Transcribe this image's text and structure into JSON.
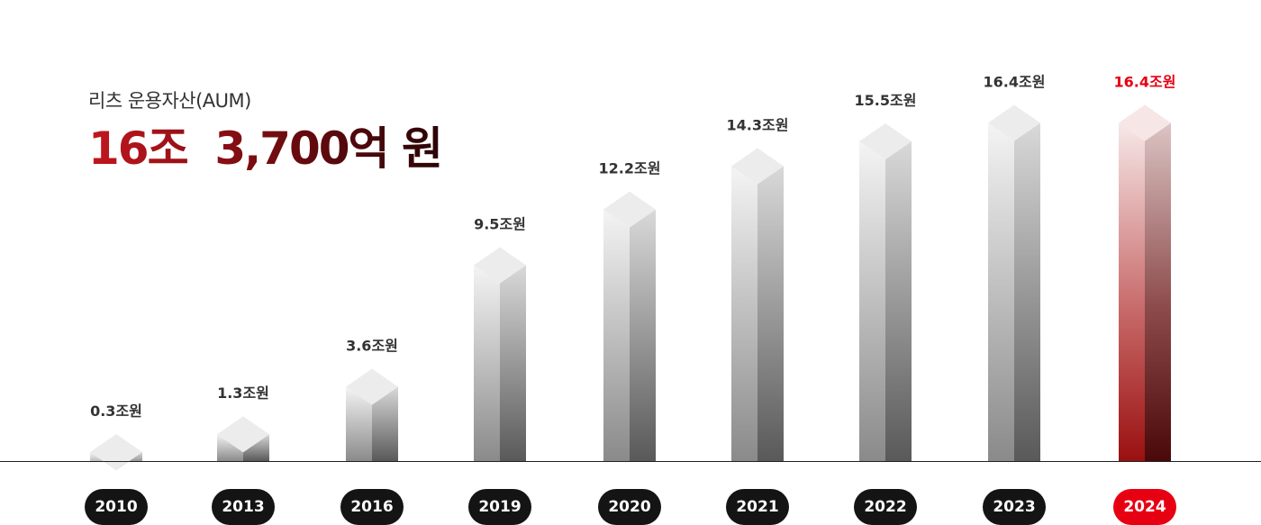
{
  "header": {
    "subtitle": "리츠 운용자산(AUM)",
    "total": "16조  3,700억 원"
  },
  "colors": {
    "highlight": "#e60012",
    "label": "#333333",
    "pill": "#141414"
  },
  "chart_data": {
    "type": "bar",
    "title": "리츠 운용자산(AUM)",
    "categories": [
      "2010",
      "2013",
      "2016",
      "2019",
      "2020",
      "2021",
      "2022",
      "2023",
      "2024"
    ],
    "values": [
      0.3,
      1.3,
      3.6,
      9.5,
      12.2,
      14.3,
      15.5,
      16.4,
      16.4
    ],
    "data_labels": [
      "0.3조원",
      "1.3조원",
      "3.6조원",
      "9.5조원",
      "12.2조원",
      "14.3조원",
      "15.5조원",
      "16.4조원",
      "16.4조원"
    ],
    "unit": "조원",
    "highlight_category": "2024",
    "style": "3d-gradient-columns",
    "grid": false,
    "legend": "none"
  }
}
